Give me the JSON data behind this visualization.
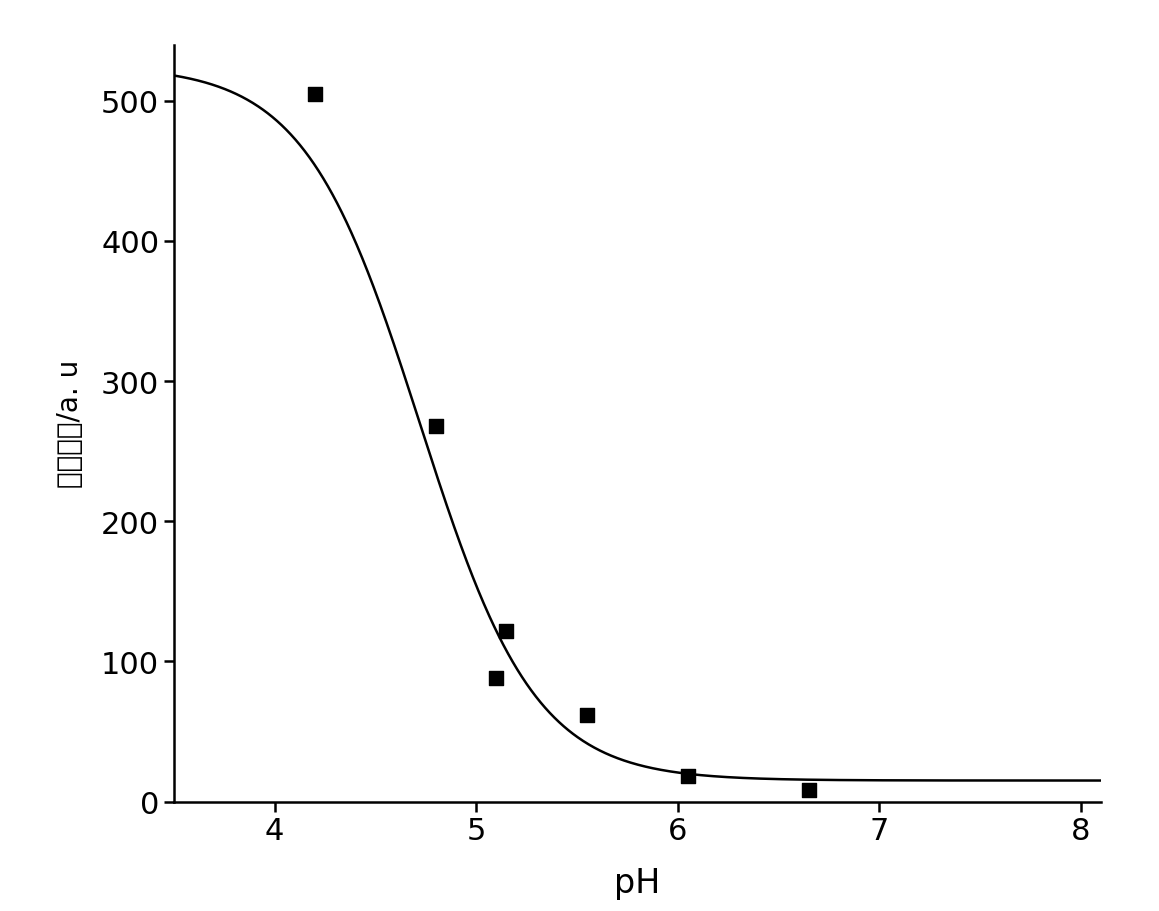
{
  "scatter_x": [
    4.2,
    4.8,
    5.1,
    5.15,
    5.55,
    6.05,
    6.65
  ],
  "scatter_y": [
    505,
    268,
    88,
    122,
    62,
    18,
    8
  ],
  "xlim": [
    3.5,
    8.1
  ],
  "ylim": [
    0,
    540
  ],
  "xticks": [
    4,
    5,
    6,
    7,
    8
  ],
  "yticks": [
    0,
    100,
    200,
    300,
    400,
    500
  ],
  "xlabel": "pH",
  "ylabel": "荧光强度/a. u",
  "curve_x_start": 3.5,
  "curve_x_end": 8.1,
  "sigmoid_max": 525,
  "sigmoid_min": 15,
  "sigmoid_midpoint": 4.72,
  "sigmoid_slope": 3.5,
  "marker_size": 100,
  "line_color": "#000000",
  "marker_color": "#000000",
  "background_color": "#ffffff",
  "xlabel_fontsize": 24,
  "ylabel_fontsize": 20,
  "tick_fontsize": 22,
  "spine_linewidth": 1.8
}
